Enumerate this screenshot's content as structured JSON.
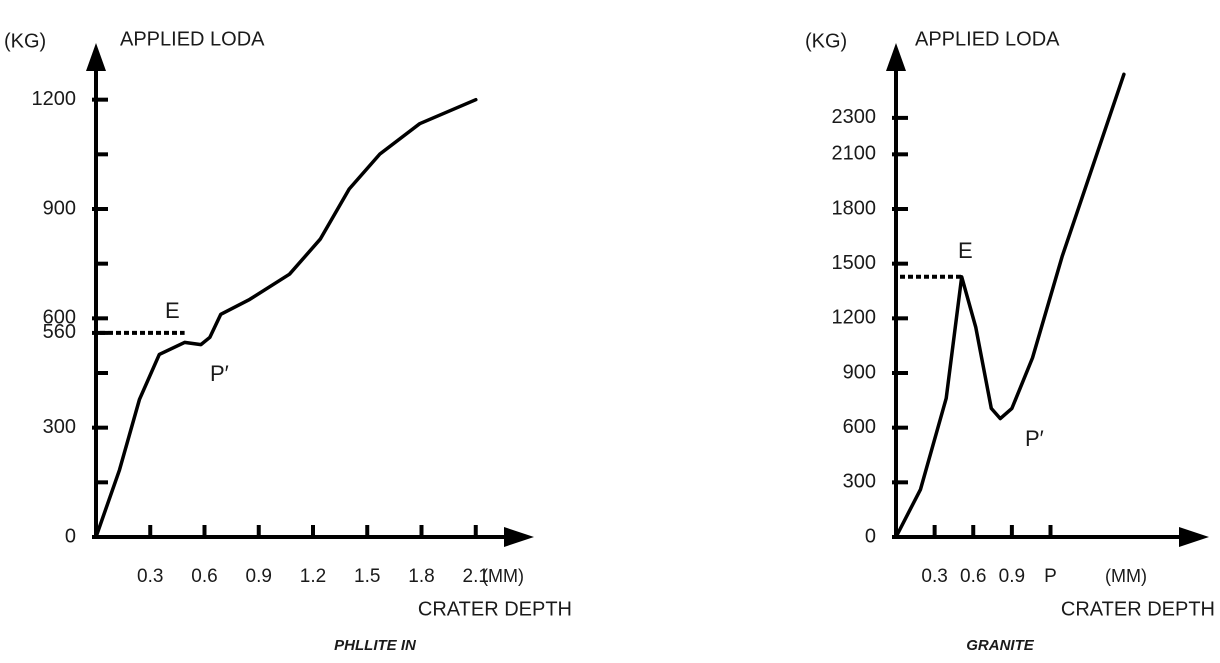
{
  "chart_data": [
    {
      "type": "line",
      "caption": "PHLLITE IN",
      "y_label": "APPLIED LODA",
      "y_unit": "(KG)",
      "x_label": "CRATER DEPTH",
      "x_unit": "(MM)",
      "color": "#000000",
      "x": [
        0,
        0.13,
        0.24,
        0.35,
        0.49,
        0.58,
        0.63,
        0.69,
        0.85,
        1.07,
        1.24,
        1.4,
        1.57,
        1.79,
        2.1
      ],
      "values": [
        0,
        184,
        377,
        501,
        534,
        528,
        548,
        611,
        652,
        721,
        817,
        955,
        1051,
        1134,
        1200
      ],
      "xlim": [
        0,
        2.4
      ],
      "ylim": [
        0,
        1350
      ],
      "xticks": [
        0.3,
        0.6,
        0.9,
        1.2,
        1.5,
        1.8,
        2.1
      ],
      "yticks": [
        0,
        300,
        560,
        600,
        900,
        1200
      ],
      "yminor_ticks": [
        150,
        450,
        750,
        1050
      ],
      "reference_line": {
        "y": 560,
        "x_end": 0.49
      },
      "annotations": [
        "E",
        "P′"
      ]
    },
    {
      "type": "line",
      "caption": "GRANITE",
      "y_label": "APPLIED LODA",
      "y_unit": "(KG)",
      "x_label": "CRATER DEPTH",
      "x_unit": "(MM)",
      "color": "#000000",
      "x": [
        0,
        0.19,
        0.39,
        0.51,
        0.62,
        0.74,
        0.81,
        0.9,
        1.06,
        1.29,
        1.53,
        1.77
      ],
      "values": [
        0,
        261,
        761,
        1428,
        1150,
        706,
        650,
        706,
        983,
        1539,
        2039,
        2539
      ],
      "xlim": [
        0,
        2.4
      ],
      "ylim": [
        0,
        2700
      ],
      "xticks": [
        0.3,
        0.6,
        0.9,
        {
          "value": 1.2,
          "label": "P"
        }
      ],
      "yticks": [
        0,
        300,
        600,
        900,
        1200,
        1500,
        1800,
        2100,
        2300
      ],
      "reference_line": {
        "y": 1428,
        "x_end": 0.51
      },
      "annotations": [
        "E",
        "P′"
      ]
    }
  ]
}
